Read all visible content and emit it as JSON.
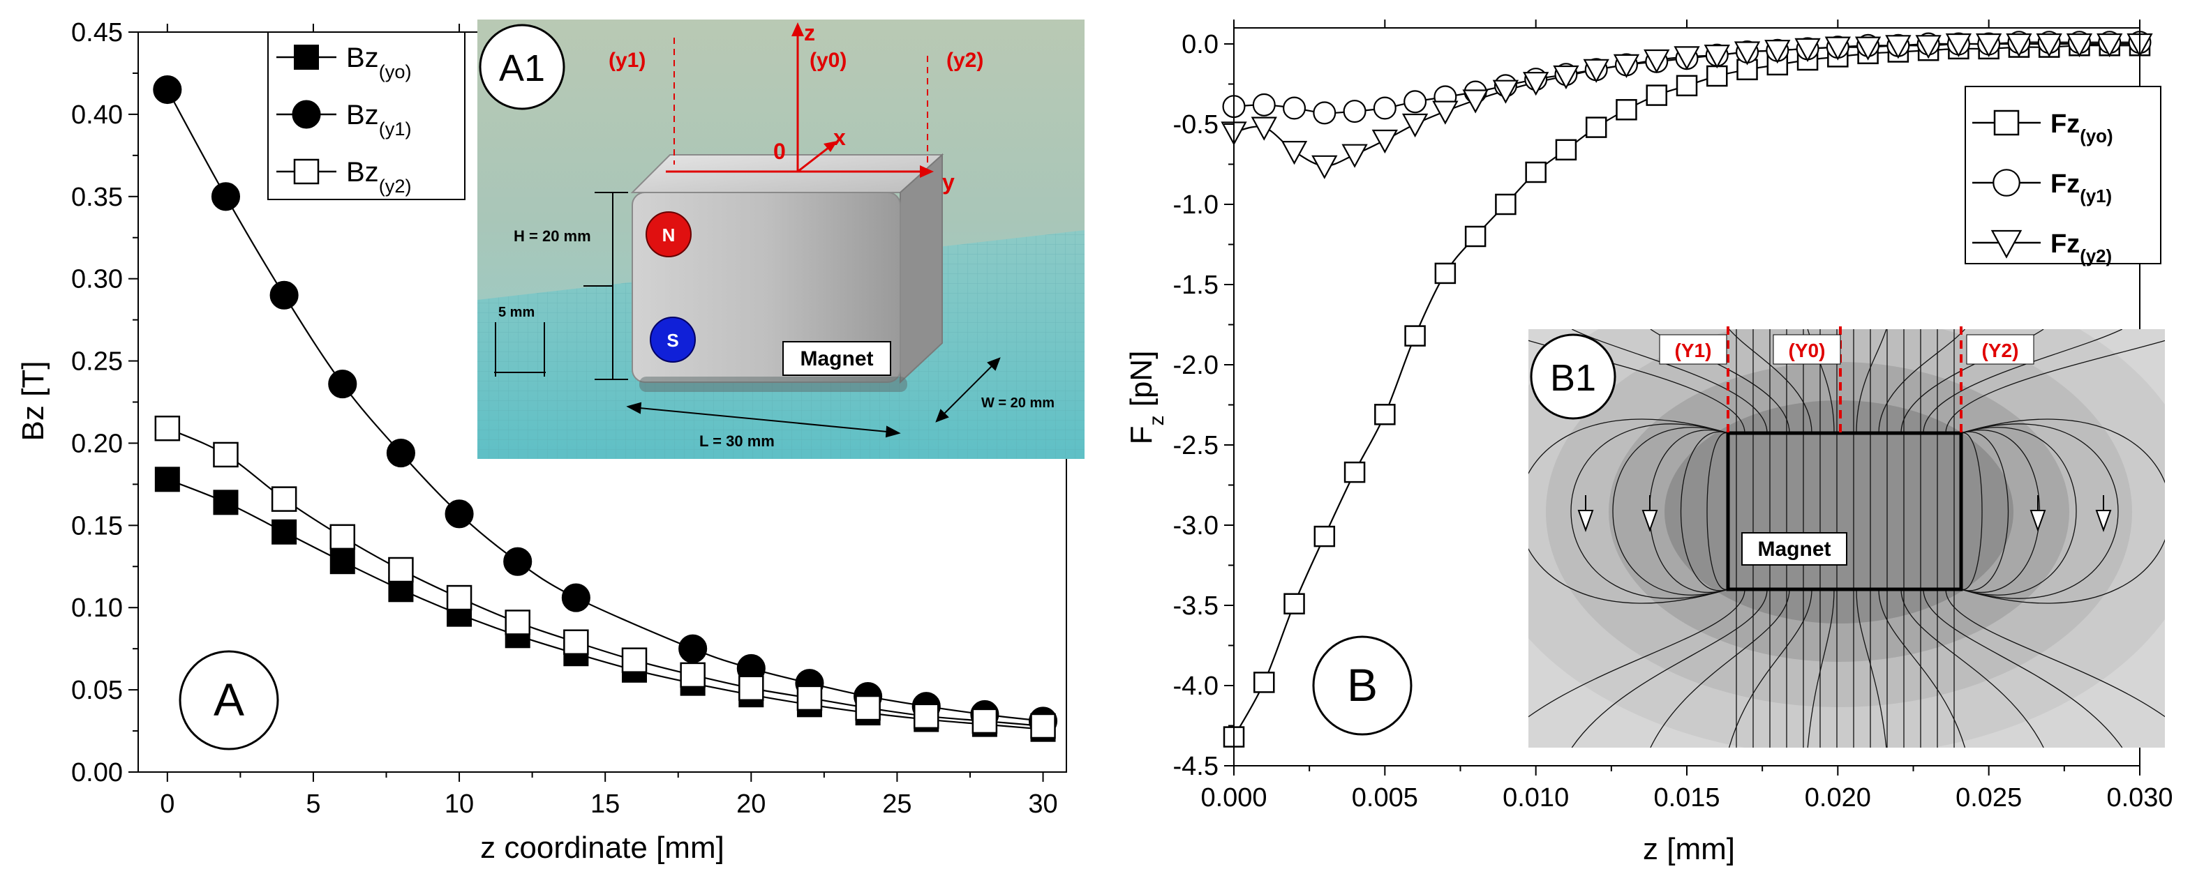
{
  "colors": {
    "axis": "#000000",
    "red": "#e00000",
    "blue": "#1010d0",
    "photo_sky": "#b7c9b3",
    "photo_floor": "#7ec9c4",
    "magnet_face": "#c9c9c9",
    "fieldmap_bg": "#d9d9d9"
  },
  "chart_data": [
    {
      "id": "A",
      "type": "line",
      "panel_label": "A",
      "xlabel": "z coordinate [mm]",
      "ylabel": "Bz [T]",
      "xlim": [
        -1,
        30.8
      ],
      "ylim": [
        0,
        0.45
      ],
      "x_ticks": [
        0,
        5,
        10,
        15,
        20,
        25,
        30
      ],
      "x_tick_labels": [
        "0",
        "5",
        "10",
        "15",
        "20",
        "25",
        "30"
      ],
      "y_ticks": [
        0,
        0.05,
        0.1,
        0.15,
        0.2,
        0.25,
        0.3,
        0.35,
        0.4,
        0.45
      ],
      "y_tick_labels": [
        "0.00",
        "0.05",
        "0.10",
        "0.15",
        "0.20",
        "0.25",
        "0.30",
        "0.35",
        "0.40",
        "0.45"
      ],
      "legend": [
        {
          "base": "Bz",
          "sub": "(yo)",
          "marker": "filled-square"
        },
        {
          "base": "Bz",
          "sub": "(y1)",
          "marker": "filled-circle"
        },
        {
          "base": "Bz",
          "sub": "(y2)",
          "marker": "open-square"
        }
      ],
      "series": [
        {
          "name": "Bz(yo)",
          "marker": "filled-square",
          "x": [
            0,
            2,
            4,
            6,
            8,
            10,
            12,
            14,
            16,
            18,
            20,
            22,
            24,
            26,
            28,
            30
          ],
          "values": [
            0.178,
            0.164,
            0.146,
            0.128,
            0.111,
            0.096,
            0.083,
            0.072,
            0.062,
            0.054,
            0.047,
            0.041,
            0.036,
            0.032,
            0.029,
            0.026
          ]
        },
        {
          "name": "Bz(y1)",
          "marker": "filled-circle",
          "x": [
            0,
            2,
            4,
            6,
            8,
            10,
            12,
            14,
            18,
            20,
            22,
            24,
            26,
            28,
            30
          ],
          "values": [
            0.415,
            0.35,
            0.29,
            0.236,
            0.194,
            0.157,
            0.128,
            0.106,
            0.075,
            0.063,
            0.054,
            0.046,
            0.04,
            0.035,
            0.031
          ]
        },
        {
          "name": "Bz(y2)",
          "marker": "open-square",
          "x": [
            0,
            2,
            4,
            6,
            8,
            10,
            12,
            14,
            16,
            18,
            20,
            22,
            24,
            26,
            28,
            30
          ],
          "values": [
            0.209,
            0.193,
            0.166,
            0.143,
            0.123,
            0.106,
            0.091,
            0.079,
            0.068,
            0.059,
            0.051,
            0.045,
            0.039,
            0.034,
            0.031,
            0.028
          ]
        }
      ]
    },
    {
      "id": "B",
      "type": "line",
      "panel_label": "B",
      "xlabel": "z [mm]",
      "ylabel": "F",
      "ylabel_sub": "z",
      "ylabel_unit": " [pN]",
      "xlim": [
        0,
        0.03
      ],
      "ylim": [
        -4.5,
        0.1
      ],
      "x_ticks": [
        0,
        0.005,
        0.01,
        0.015,
        0.02,
        0.025,
        0.03
      ],
      "x_tick_labels": [
        "0.000",
        "0.005",
        "0.010",
        "0.015",
        "0.020",
        "0.025",
        "0.030"
      ],
      "y_ticks": [
        -4.5,
        -4.0,
        -3.5,
        -3.0,
        -2.5,
        -2.0,
        -1.5,
        -1.0,
        -0.5,
        0.0
      ],
      "y_tick_labels": [
        "-4.5",
        "-4.0",
        "-3.5",
        "-3.0",
        "-2.5",
        "-2.0",
        "-1.5",
        "-1.0",
        "-0.5",
        "0.0"
      ],
      "legend": [
        {
          "base": "Fz",
          "sub": "(yo)",
          "marker": "open-square"
        },
        {
          "base": "Fz",
          "sub": "(y1)",
          "marker": "open-circle"
        },
        {
          "base": "Fz",
          "sub": "(y2)",
          "marker": "open-triangle"
        }
      ],
      "series": [
        {
          "name": "Fz(yo)",
          "marker": "open-square",
          "x": [
            0,
            0.001,
            0.002,
            0.003,
            0.004,
            0.005,
            0.006,
            0.007,
            0.008,
            0.009,
            0.01,
            0.011,
            0.012,
            0.013,
            0.014,
            0.015,
            0.016,
            0.017,
            0.018,
            0.019,
            0.02,
            0.021,
            0.022,
            0.023,
            0.024,
            0.025,
            0.026,
            0.027,
            0.028,
            0.029,
            0.03
          ],
          "values": [
            -4.32,
            -3.98,
            -3.49,
            -3.07,
            -2.67,
            -2.31,
            -1.82,
            -1.43,
            -1.2,
            -1.0,
            -0.8,
            -0.66,
            -0.52,
            -0.41,
            -0.32,
            -0.26,
            -0.2,
            -0.16,
            -0.13,
            -0.1,
            -0.08,
            -0.06,
            -0.05,
            -0.04,
            -0.03,
            -0.03,
            -0.02,
            -0.02,
            -0.01,
            -0.01,
            -0.01
          ]
        },
        {
          "name": "Fz(y1)",
          "marker": "open-circle",
          "x": [
            0,
            0.001,
            0.002,
            0.003,
            0.004,
            0.005,
            0.006,
            0.007,
            0.008,
            0.009,
            0.01,
            0.011,
            0.012,
            0.013,
            0.014,
            0.015,
            0.016,
            0.017,
            0.018,
            0.019,
            0.02,
            0.021,
            0.022,
            0.023,
            0.024,
            0.025,
            0.026,
            0.027,
            0.028,
            0.029,
            0.03
          ],
          "values": [
            -0.39,
            -0.38,
            -0.4,
            -0.43,
            -0.42,
            -0.4,
            -0.36,
            -0.33,
            -0.3,
            -0.26,
            -0.22,
            -0.19,
            -0.16,
            -0.13,
            -0.11,
            -0.09,
            -0.07,
            -0.05,
            -0.04,
            -0.03,
            -0.02,
            -0.01,
            -0.01,
            0.0,
            0.0,
            0.0,
            0.01,
            0.01,
            0.01,
            0.01,
            0.01
          ]
        },
        {
          "name": "Fz(y2)",
          "marker": "open-triangle",
          "x": [
            0,
            0.001,
            0.002,
            0.003,
            0.004,
            0.005,
            0.006,
            0.007,
            0.008,
            0.009,
            0.01,
            0.011,
            0.012,
            0.013,
            0.014,
            0.015,
            0.016,
            0.017,
            0.018,
            0.019,
            0.02,
            0.021,
            0.022,
            0.023,
            0.024,
            0.025,
            0.026,
            0.027,
            0.028,
            0.029,
            0.03
          ],
          "values": [
            -0.55,
            -0.52,
            -0.67,
            -0.76,
            -0.69,
            -0.6,
            -0.5,
            -0.42,
            -0.35,
            -0.29,
            -0.24,
            -0.2,
            -0.16,
            -0.13,
            -0.1,
            -0.08,
            -0.07,
            -0.05,
            -0.04,
            -0.03,
            -0.02,
            -0.02,
            -0.01,
            -0.01,
            0.0,
            0.0,
            0.0,
            0.0,
            0.0,
            0.0,
            0.0
          ]
        }
      ]
    }
  ],
  "inset_a1": {
    "label": "A1",
    "axis_z": "z",
    "axis_x": "x",
    "axis_y": "y",
    "origin": "0",
    "y1_label": "(y1)",
    "y0_label": "(y0)",
    "y2_label": "(y2)",
    "north": "N",
    "south": "S",
    "magnet": "Magnet",
    "height": "H = 20 mm",
    "length": "L = 30 mm",
    "width": "W = 20 mm",
    "scale": "5 mm"
  },
  "inset_b1": {
    "label": "B1",
    "magnet": "Magnet",
    "y1_label": "(Y1)",
    "y0_label": "(Y0)",
    "y2_label": "(Y2)"
  }
}
